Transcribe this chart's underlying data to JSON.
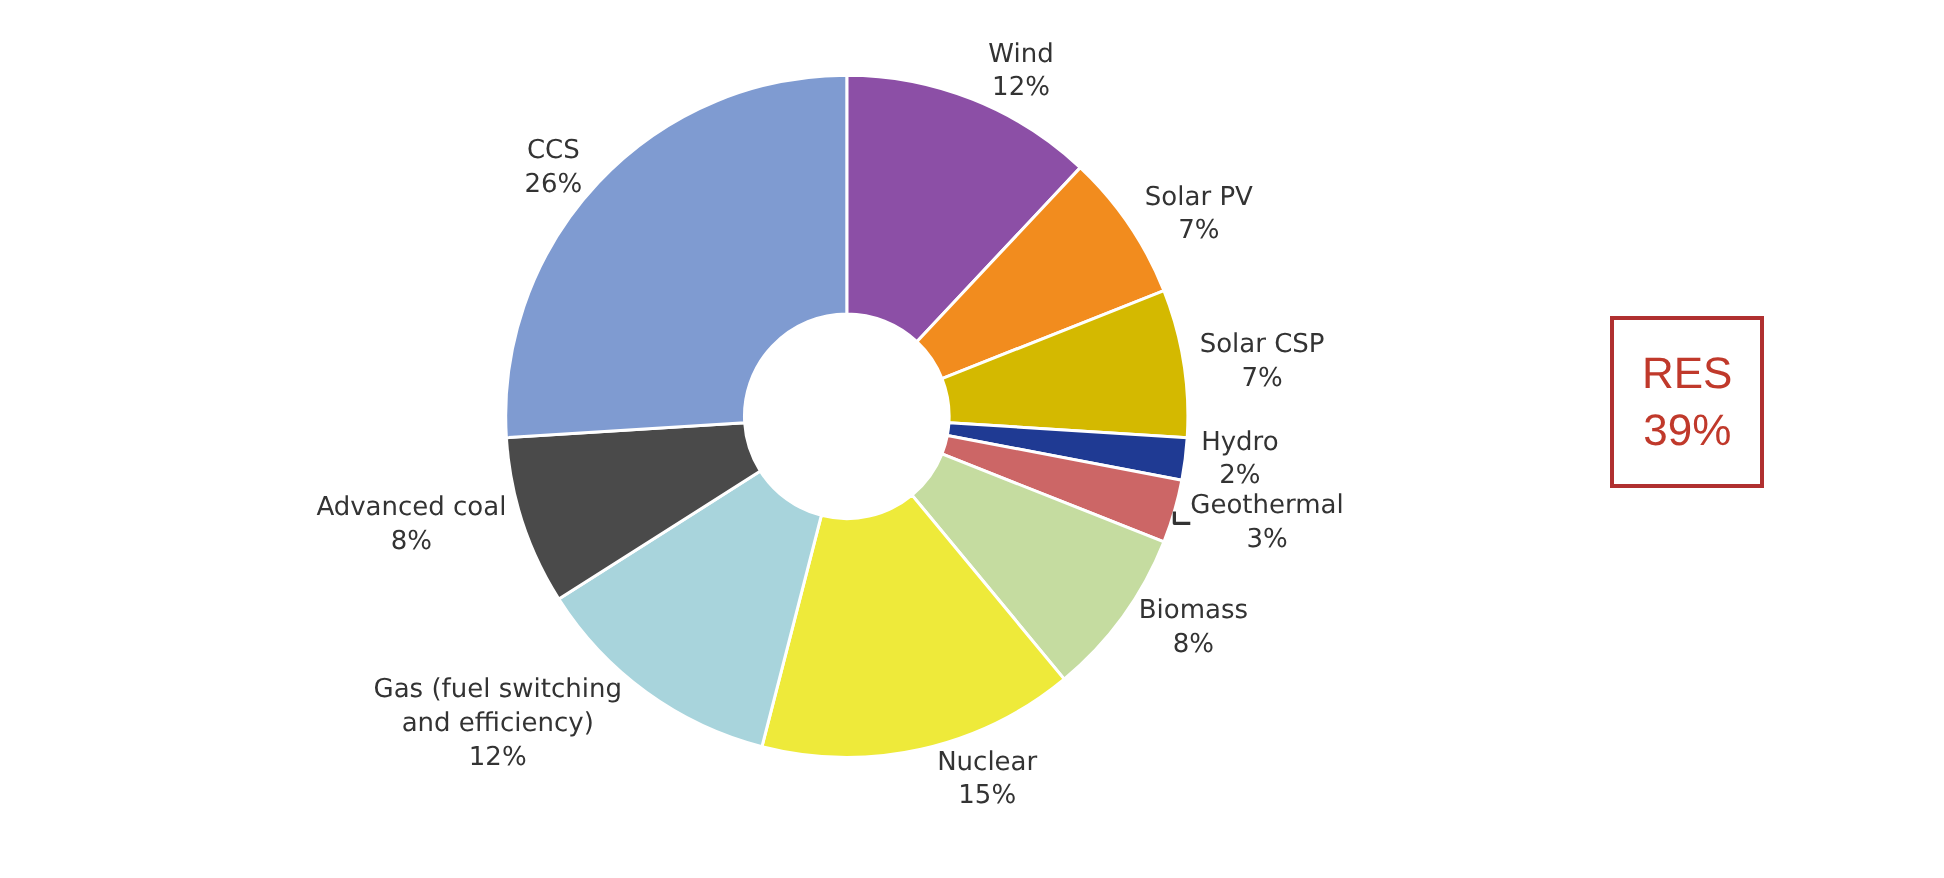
{
  "chart_data": {
    "type": "donut",
    "categories": [
      "Wind",
      "Solar PV",
      "Solar CSP",
      "Hydro",
      "Geothermal",
      "Biomass",
      "Nuclear",
      "Gas (fuel switching and efficiency)",
      "Advanced coal",
      "CCS"
    ],
    "values": [
      12,
      7,
      7,
      2,
      3,
      8,
      15,
      12,
      8,
      26
    ],
    "value_labels": [
      "12%",
      "7%",
      "7%",
      "2%",
      "3%",
      "8%",
      "15%",
      "12%",
      "8%",
      "26%"
    ],
    "colors": [
      "#8c4fa6",
      "#f28c1e",
      "#d4b900",
      "#1f3a93",
      "#cc6666",
      "#c5dca0",
      "#eeea3a",
      "#a8d4dc",
      "#4a4a4a",
      "#7f9bd1"
    ],
    "annotations": [
      "RES\n39%"
    ],
    "legend": false
  }
}
